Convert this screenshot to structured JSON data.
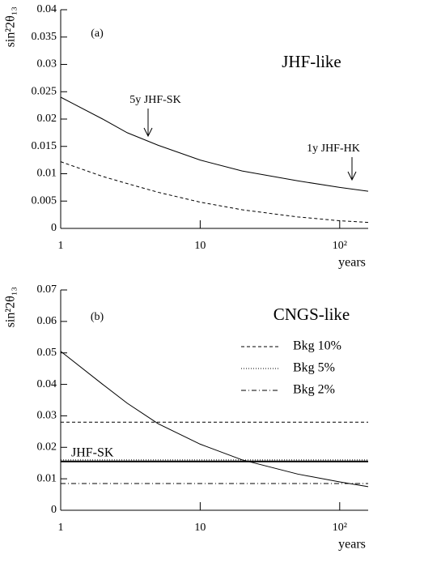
{
  "chart_data": [
    {
      "type": "line",
      "y_label": "sin²2θ₁₃",
      "x_label": "years",
      "log_x": true,
      "xlim": [
        1,
        160
      ],
      "xticks": [
        1,
        10,
        {
          "value": 100,
          "label": "10²"
        }
      ],
      "ylim": [
        0,
        0.04
      ],
      "yticks": [
        0,
        0.005,
        0.01,
        0.015,
        0.02,
        0.025,
        0.03,
        0.035,
        0.04
      ],
      "annotations": [
        "(a)",
        "JHF-like",
        "5y JHF-SK",
        "1y JHF-HK"
      ],
      "series": [
        {
          "color": "#000",
          "style": "solid",
          "x": [
            1,
            2,
            3,
            5,
            10,
            20,
            50,
            100,
            160
          ],
          "values": [
            0.024,
            0.02,
            0.0175,
            0.0152,
            0.0125,
            0.0105,
            0.0087,
            0.0075,
            0.0068
          ]
        },
        {
          "color": "#000",
          "style": "dashed",
          "x": [
            1,
            2,
            3,
            5,
            10,
            20,
            50,
            100,
            160
          ],
          "values": [
            0.0122,
            0.0095,
            0.0082,
            0.0066,
            0.0048,
            0.0034,
            0.0021,
            0.0014,
            0.0011
          ]
        }
      ]
    },
    {
      "type": "line",
      "y_label": "sin²2θ₁₃",
      "x_label": "years",
      "log_x": true,
      "xlim": [
        1,
        160
      ],
      "xticks": [
        1,
        10,
        {
          "value": 100,
          "label": "10²"
        }
      ],
      "ylim": [
        0,
        0.07
      ],
      "yticks": [
        0,
        0.01,
        0.02,
        0.03,
        0.04,
        0.05,
        0.06,
        0.07
      ],
      "annotations": [
        "(b)",
        "CNGS-like"
      ],
      "series": [
        {
          "color": "#000",
          "style": "solid",
          "x": [
            1,
            2,
            3,
            5,
            10,
            20,
            50,
            100,
            160
          ],
          "values": [
            0.0505,
            0.04,
            0.034,
            0.0275,
            0.021,
            0.016,
            0.0115,
            0.009,
            0.0075
          ]
        },
        {
          "name": "Bkg 10%",
          "color": "#000",
          "style": "dashed",
          "x": [
            1,
            160
          ],
          "values": [
            0.028,
            0.028
          ]
        },
        {
          "name": "Bkg 5%",
          "color": "#000",
          "style": "dotted",
          "x": [
            1,
            160
          ],
          "values": [
            0.016,
            0.016
          ]
        },
        {
          "name": "Bkg 2%",
          "color": "#000",
          "style": "dashdot",
          "x": [
            1,
            160
          ],
          "values": [
            0.0085,
            0.0085
          ]
        },
        {
          "label": "JHF-SK",
          "color": "#000",
          "style": "thick",
          "x": [
            1,
            160
          ],
          "values": [
            0.0155,
            0.0155
          ]
        }
      ]
    }
  ]
}
